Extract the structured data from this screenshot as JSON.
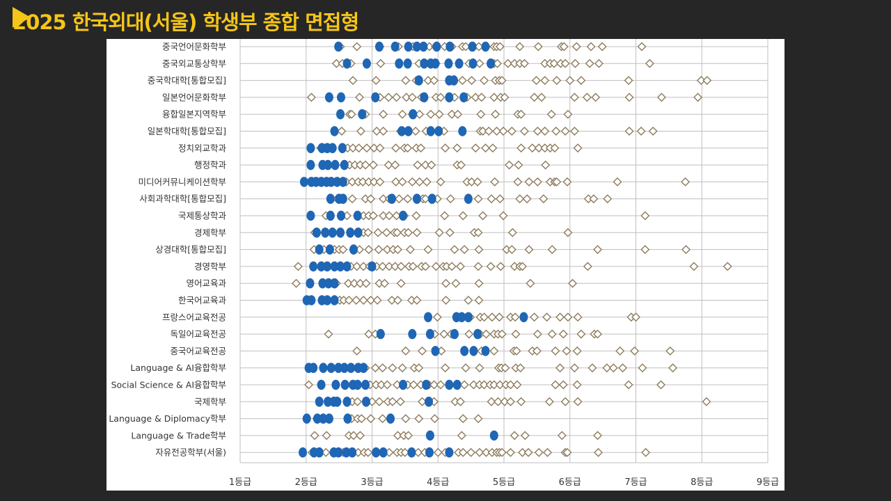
{
  "header": {
    "title": "2025 한국외대(서울) 학생부 종합 면접형",
    "accent_color": "#F5C518",
    "icon": "play-triangle-icon"
  },
  "chart_data": {
    "type": "scatter",
    "title": "2025 한국외대(서울) 학생부 종합 면접형",
    "xlabel": "",
    "ylabel": "",
    "xlim": [
      1,
      9
    ],
    "x_ticks": [
      1,
      2,
      3,
      4,
      5,
      6,
      7,
      8,
      9
    ],
    "x_tick_labels": [
      "1등급",
      "2등급",
      "3등급",
      "4등급",
      "5등급",
      "6등급",
      "7등급",
      "8등급",
      "9등급"
    ],
    "grid": true,
    "legend": "none",
    "series_styles": {
      "합격": {
        "marker": "filled-circle",
        "color": "#1F66B5"
      },
      "불합격": {
        "marker": "open-diamond",
        "color": "#8C7A5B"
      }
    },
    "categories": [
      {
        "name": "중국언어문화학부",
        "accepted": [
          2.49,
          3.11,
          3.35,
          3.55,
          3.68,
          3.78,
          3.98,
          4.18,
          4.52,
          4.72
        ],
        "rejected": [
          2.52,
          2.77,
          3.12,
          3.4,
          3.62,
          3.87,
          3.96,
          4.1,
          4.21,
          4.37,
          4.42,
          4.53,
          4.55,
          4.62,
          4.73,
          4.85,
          4.89,
          4.94,
          5.24,
          5.52,
          5.87,
          5.91,
          6.1,
          6.32,
          6.49,
          7.09
        ]
      },
      {
        "name": "중국외교통상학부",
        "accepted": [
          2.62,
          2.92,
          3.41,
          3.54,
          3.79,
          3.89,
          3.96,
          4.16,
          4.32,
          4.53,
          4.8
        ],
        "rejected": [
          2.46,
          2.55,
          2.68,
          3.13,
          3.71,
          3.97,
          4.47,
          4.63,
          4.85,
          4.9,
          5.06,
          5.16,
          5.24,
          5.31,
          5.62,
          5.7,
          5.76,
          5.86,
          5.93,
          6.08,
          6.3,
          6.44,
          7.21
        ]
      },
      {
        "name": "중국학대학[통합모집]",
        "accepted": [
          3.71,
          4.17,
          4.24
        ],
        "rejected": [
          2.71,
          3.06,
          3.51,
          3.67,
          3.85,
          3.94,
          4.23,
          4.37,
          4.51,
          4.7,
          4.87,
          4.93,
          4.97,
          5.49,
          5.62,
          5.8,
          6.0,
          6.17,
          6.89,
          7.99,
          8.08
        ]
      },
      {
        "name": "일본언어문화학부",
        "accepted": [
          2.35,
          2.53,
          3.05,
          3.79,
          4.17,
          4.39
        ],
        "rejected": [
          2.08,
          2.81,
          3.12,
          3.25,
          3.37,
          3.52,
          3.61,
          3.75,
          3.97,
          4.04,
          4.25,
          4.44,
          4.57,
          4.66,
          4.85,
          4.95,
          5.01,
          5.46,
          5.57,
          6.07,
          6.26,
          6.39,
          6.9,
          7.39,
          7.94
        ]
      },
      {
        "name": "융합일본지역학부",
        "accepted": [
          2.52,
          2.85,
          3.62
        ],
        "rejected": [
          2.66,
          2.69,
          2.9,
          3.17,
          3.46,
          3.61,
          3.72,
          3.89,
          4.02,
          4.21,
          4.3,
          4.65,
          4.87,
          5.21,
          5.26,
          5.72,
          5.97
        ]
      },
      {
        "name": "일본학대학[통합모집]",
        "accepted": [
          2.43,
          3.45,
          3.55,
          3.89,
          4.01,
          4.37
        ],
        "rejected": [
          2.54,
          2.83,
          3.07,
          3.17,
          3.43,
          3.66,
          3.82,
          4.09,
          4.64,
          4.68,
          4.77,
          4.89,
          4.99,
          5.12,
          5.31,
          5.51,
          5.62,
          5.79,
          5.93,
          6.07,
          6.9,
          7.08,
          7.26
        ]
      },
      {
        "name": "정치외교학과",
        "accepted": [
          2.07,
          2.24,
          2.32,
          2.4,
          2.55
        ],
        "rejected": [
          2.22,
          2.32,
          2.63,
          2.71,
          2.8,
          2.92,
          3.03,
          3.12,
          3.36,
          3.49,
          3.54,
          3.67,
          3.74,
          4.11,
          4.29,
          4.57,
          4.72,
          4.83,
          5.26,
          5.43,
          5.53,
          5.62,
          5.7,
          5.77,
          6.12
        ]
      },
      {
        "name": "행정학과",
        "accepted": [
          2.07,
          2.25,
          2.33,
          2.44,
          2.58
        ],
        "rejected": [
          2.57,
          2.66,
          2.74,
          2.82,
          2.9,
          3.02,
          3.25,
          3.35,
          3.69,
          3.81,
          3.9,
          4.29,
          4.35,
          5.08,
          5.22,
          5.63
        ]
      },
      {
        "name": "미디어커뮤니케이션학부",
        "accepted": [
          1.97,
          2.08,
          2.15,
          2.23,
          2.31,
          2.38,
          2.47,
          2.56
        ],
        "rejected": [
          2.61,
          2.7,
          2.79,
          2.86,
          2.95,
          3.03,
          3.12,
          3.36,
          3.46,
          3.61,
          3.72,
          3.83,
          4.04,
          4.44,
          4.51,
          4.6,
          4.86,
          5.21,
          5.38,
          5.51,
          5.7,
          5.77,
          5.8,
          5.96,
          6.72,
          7.75
        ]
      },
      {
        "name": "사회과학대학[통합모집]",
        "accepted": [
          2.37,
          2.5,
          2.56,
          3.3,
          3.68,
          3.91,
          4.46
        ],
        "rejected": [
          2.47,
          2.7,
          2.9,
          2.98,
          3.17,
          3.26,
          3.41,
          3.54,
          3.77,
          3.81,
          3.99,
          4.19,
          4.61,
          4.81,
          4.94,
          5.24,
          5.35,
          5.6,
          6.28,
          6.36,
          6.57
        ]
      },
      {
        "name": "국제통상학과",
        "accepted": [
          2.07,
          2.37,
          2.53,
          2.78,
          3.47
        ],
        "rejected": [
          2.3,
          2.62,
          2.87,
          2.95,
          3.02,
          3.17,
          3.26,
          3.37,
          3.49,
          3.67,
          4.1,
          4.38,
          4.68,
          4.99,
          7.14
        ]
      },
      {
        "name": "경제학부",
        "accepted": [
          2.16,
          2.29,
          2.4,
          2.52,
          2.67,
          2.79
        ],
        "rejected": [
          2.13,
          2.28,
          2.77,
          2.87,
          2.94,
          3.09,
          3.22,
          3.34,
          3.38,
          3.49,
          3.55,
          3.68,
          4.02,
          4.18,
          4.55,
          4.61,
          5.13,
          5.97
        ]
      },
      {
        "name": "상경대학[통합모집]",
        "accepted": [
          2.2,
          2.36,
          2.72
        ],
        "rejected": [
          2.12,
          2.27,
          2.43,
          2.5,
          2.56,
          2.81,
          2.95,
          3.1,
          3.23,
          3.32,
          3.39,
          3.58,
          3.85,
          4.25,
          4.4,
          4.62,
          5.04,
          5.12,
          5.38,
          5.73,
          6.42,
          7.14,
          7.76
        ]
      },
      {
        "name": "경영학부",
        "accepted": [
          2.11,
          2.23,
          2.32,
          2.43,
          2.52,
          2.62,
          3.0
        ],
        "rejected": [
          1.88,
          2.54,
          2.68,
          2.77,
          2.87,
          2.96,
          3.07,
          3.16,
          3.26,
          3.35,
          3.44,
          3.56,
          3.62,
          3.75,
          3.81,
          3.97,
          4.08,
          4.13,
          4.21,
          4.34,
          4.61,
          4.8,
          4.95,
          5.16,
          5.24,
          5.28,
          6.27,
          7.88,
          8.39
        ]
      },
      {
        "name": "영어교육과",
        "accepted": [
          2.06,
          2.25,
          2.34,
          2.43
        ],
        "rejected": [
          1.85,
          2.46,
          2.64,
          2.73,
          2.82,
          2.91,
          3.11,
          3.19,
          3.44,
          4.12,
          4.27,
          4.62,
          5.4,
          6.04
        ]
      },
      {
        "name": "한국어교육과",
        "accepted": [
          2.01,
          2.08,
          2.24,
          2.32,
          2.43
        ],
        "rejected": [
          2.51,
          2.57,
          2.65,
          2.76,
          2.87,
          2.98,
          3.08,
          3.3,
          3.39,
          3.6,
          3.68,
          4.12,
          4.46,
          4.62
        ]
      },
      {
        "name": "프랑스어교육전공",
        "accepted": [
          3.85,
          4.28,
          4.36,
          4.46,
          5.3
        ],
        "rejected": [
          3.99,
          4.49,
          4.64,
          4.7,
          4.82,
          4.93,
          5.1,
          5.17,
          5.46,
          5.65,
          5.85,
          5.97,
          6.12,
          6.93,
          7.0
        ]
      },
      {
        "name": "독일어교육전공",
        "accepted": [
          3.13,
          3.61,
          3.88,
          4.25,
          4.6
        ],
        "rejected": [
          2.34,
          2.95,
          3.05,
          3.95,
          4.09,
          4.2,
          4.47,
          4.64,
          4.73,
          4.85,
          4.91,
          4.97,
          5.18,
          5.51,
          5.73,
          5.9,
          6.17,
          6.37,
          6.42
        ]
      },
      {
        "name": "중국어교육전공",
        "accepted": [
          3.96,
          4.4,
          4.54,
          4.72
        ],
        "rejected": [
          2.77,
          3.51,
          3.76,
          4.05,
          4.66,
          4.85,
          5.15,
          5.19,
          5.43,
          5.5,
          5.78,
          5.95,
          6.11,
          6.76,
          6.98,
          7.52
        ]
      },
      {
        "name": "Language & AI융합학부",
        "accepted": [
          2.04,
          2.11,
          2.26,
          2.38,
          2.49,
          2.58,
          2.68,
          2.79,
          2.87
        ],
        "rejected": [
          2.9,
          3.05,
          3.16,
          3.31,
          3.46,
          3.64,
          3.71,
          4.11,
          4.42,
          4.63,
          4.92,
          4.96,
          5.02,
          5.18,
          5.25,
          5.85,
          6.07,
          6.34,
          6.56,
          6.66,
          6.8,
          7.1,
          7.56
        ]
      },
      {
        "name": "Social Science & AI융합학부",
        "accepted": [
          2.23,
          2.45,
          2.59,
          2.71,
          2.78,
          2.9,
          3.47,
          3.82,
          4.17,
          4.29
        ],
        "rejected": [
          2.04,
          2.97,
          3.06,
          3.14,
          3.23,
          3.38,
          3.54,
          3.63,
          3.74,
          3.86,
          3.94,
          4.04,
          4.4,
          4.54,
          4.63,
          4.7,
          4.79,
          4.85,
          4.94,
          5.03,
          5.1,
          5.2,
          5.78,
          5.9,
          6.11,
          6.89,
          7.38
        ]
      },
      {
        "name": "국제학부",
        "accepted": [
          2.2,
          2.33,
          2.42,
          2.47,
          2.62,
          2.91,
          3.86
        ],
        "rejected": [
          2.7,
          2.78,
          3.0,
          3.11,
          3.24,
          3.31,
          3.43,
          3.76,
          3.94,
          4.26,
          4.34,
          4.81,
          4.91,
          5.01,
          5.1,
          5.26,
          5.69,
          5.93,
          6.12,
          8.07
        ]
      },
      {
        "name": "Language & Diplomacy학부",
        "accepted": [
          2.01,
          2.17,
          2.26,
          2.35,
          2.63,
          3.28
        ],
        "rejected": [
          2.16,
          2.69,
          2.78,
          2.84,
          2.98,
          3.16,
          3.51,
          3.71,
          3.95,
          4.38,
          4.61
        ]
      },
      {
        "name": "Language & Trade학부",
        "accepted": [
          3.88,
          4.85
        ],
        "rejected": [
          2.13,
          2.31,
          2.65,
          2.72,
          2.82,
          3.39,
          3.48,
          3.55,
          4.36,
          5.16,
          5.32,
          5.88,
          6.42
        ]
      },
      {
        "name": "자유전공학부(서울)",
        "accepted": [
          1.95,
          2.12,
          2.2,
          2.42,
          2.49,
          2.61,
          2.7,
          3.06,
          3.17,
          3.6,
          3.87,
          4.17
        ],
        "rejected": [
          2.09,
          2.3,
          2.48,
          2.56,
          2.79,
          2.88,
          2.94,
          3.26,
          3.38,
          3.44,
          3.5,
          3.7,
          3.8,
          4.0,
          4.11,
          4.31,
          4.38,
          4.5,
          4.63,
          4.73,
          4.82,
          4.89,
          4.93,
          4.97,
          5.1,
          5.28,
          5.37,
          5.53,
          5.66,
          5.93,
          5.96,
          6.43,
          7.15
        ]
      }
    ]
  }
}
